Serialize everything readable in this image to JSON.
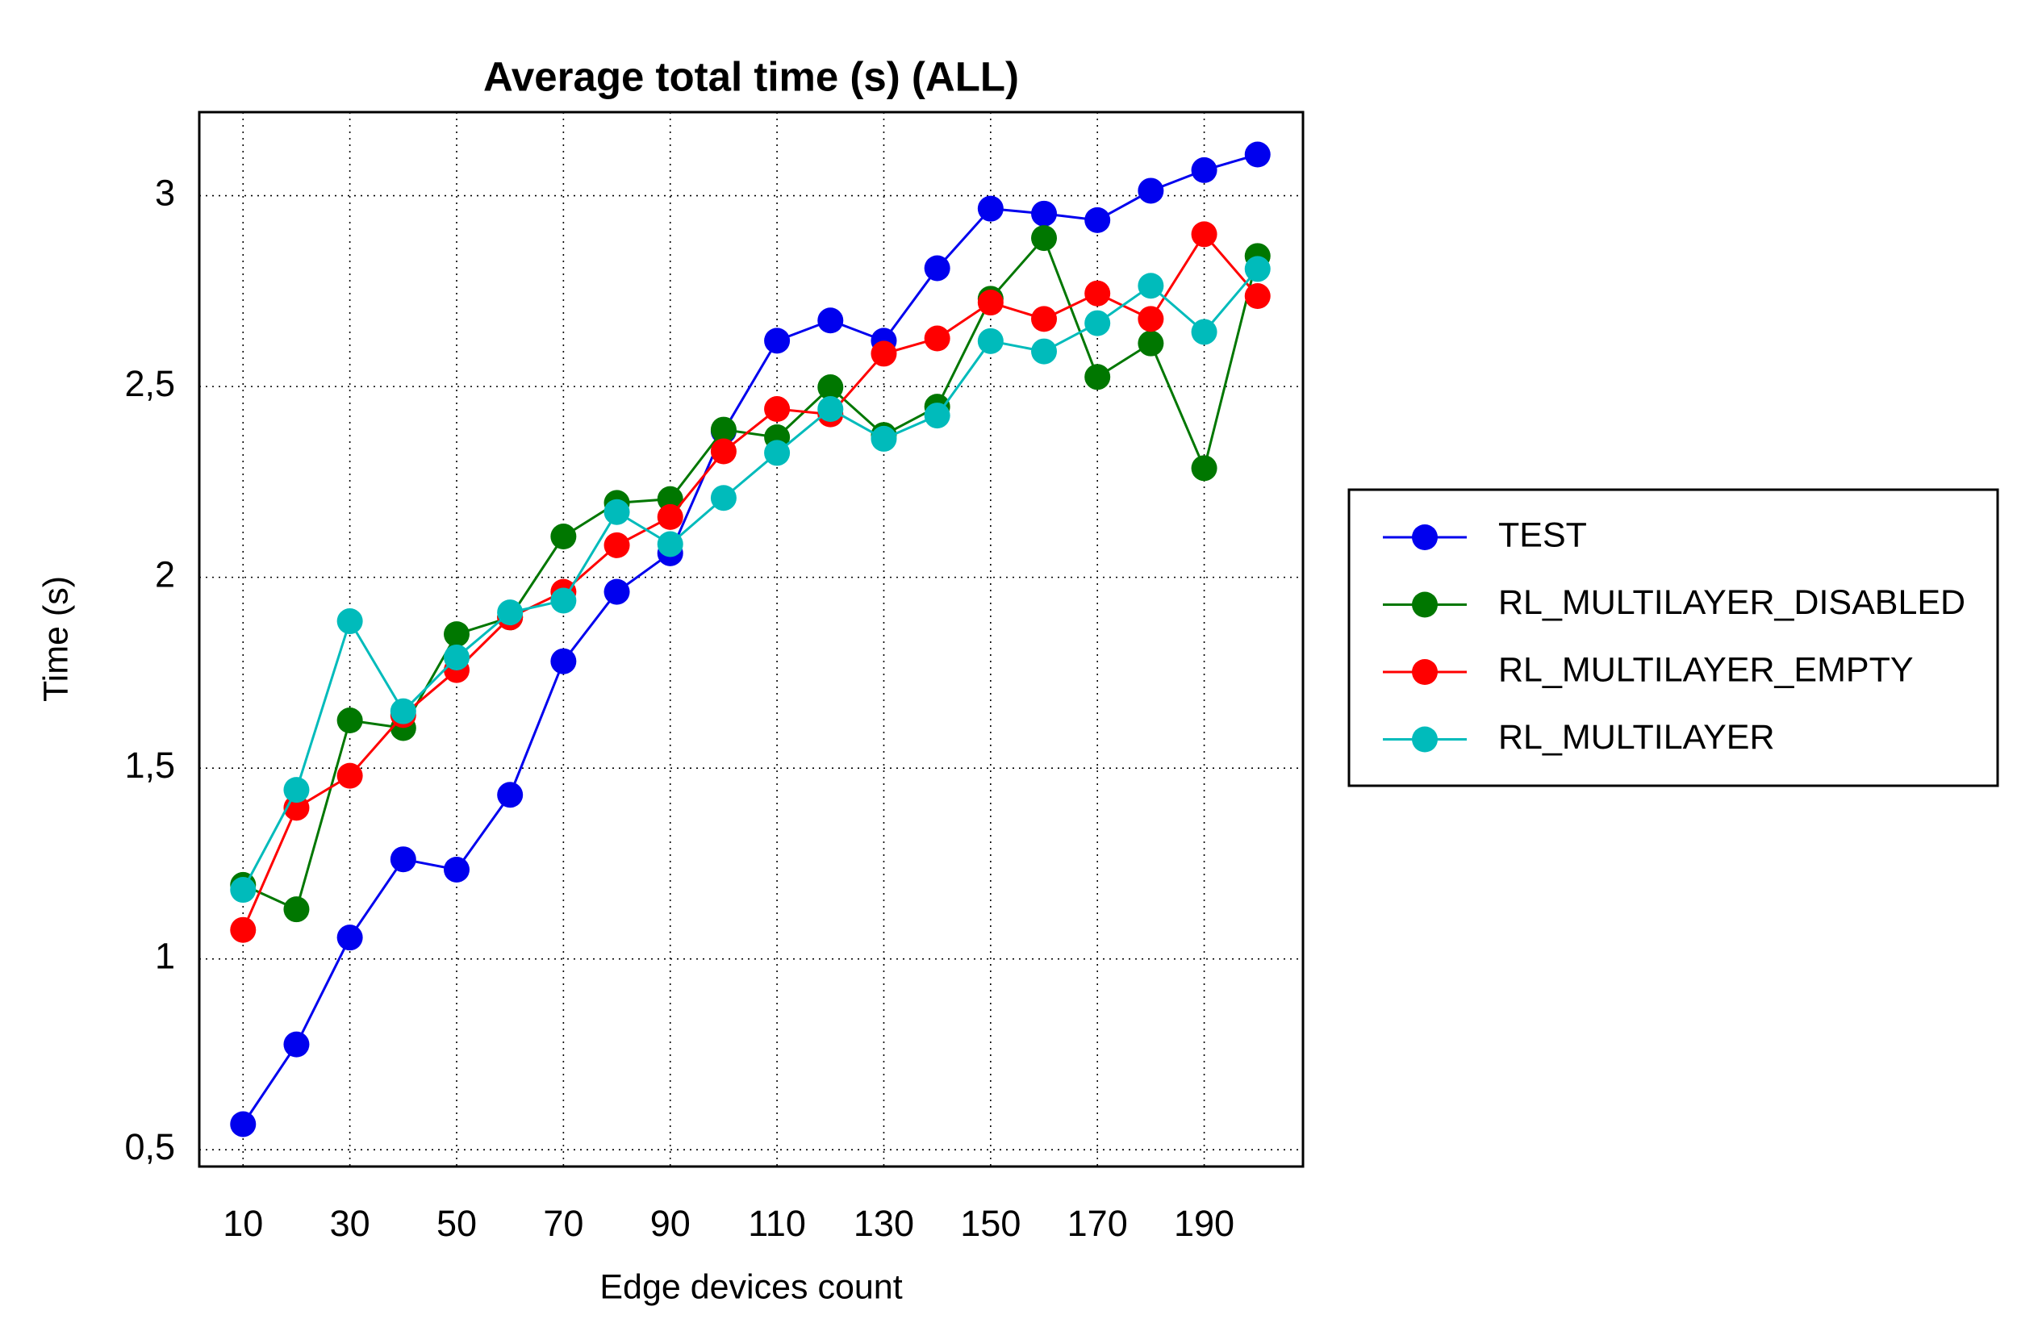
{
  "chart_data": {
    "type": "line",
    "title": "Average total time (s) (ALL)",
    "x_label": "Edge devices count",
    "y_label": "Time (s)",
    "x": [
      10,
      20,
      30,
      40,
      50,
      60,
      70,
      80,
      90,
      100,
      110,
      120,
      130,
      140,
      150,
      160,
      170,
      180,
      190,
      200
    ],
    "xlim": [
      1.8,
      208.5
    ],
    "ylim": [
      0.456,
      3.219
    ],
    "xticks": [
      10,
      30,
      50,
      70,
      90,
      110,
      130,
      150,
      170,
      190
    ],
    "yticks": [
      {
        "value": 0.5,
        "label": "0,5"
      },
      1,
      {
        "value": 1.5,
        "label": "1,5"
      },
      2,
      {
        "value": 2.5,
        "label": "2,5"
      },
      3
    ],
    "grid": true,
    "legend": "right",
    "series": [
      {
        "name": "TEST",
        "color": "#0000ee",
        "values": [
          0.567,
          0.776,
          1.056,
          1.261,
          1.234,
          1.43,
          1.78,
          1.962,
          2.063,
          2.383,
          2.62,
          2.673,
          2.62,
          2.81,
          2.966,
          2.953,
          2.936,
          3.013,
          3.067,
          3.108
        ]
      },
      {
        "name": "RL_MULTILAYER_DISABLED",
        "color": "#007700",
        "values": [
          1.194,
          1.13,
          1.625,
          1.605,
          1.851,
          1.895,
          2.107,
          2.195,
          2.205,
          2.387,
          2.367,
          2.498,
          2.373,
          2.447,
          2.73,
          2.889,
          2.525,
          2.613,
          2.286,
          2.842
        ]
      },
      {
        "name": "RL_MULTILAYER_EMPTY",
        "color": "#ff0000",
        "values": [
          1.076,
          1.396,
          1.48,
          1.639,
          1.757,
          1.895,
          1.962,
          2.084,
          2.158,
          2.33,
          2.441,
          2.427,
          2.586,
          2.626,
          2.72,
          2.677,
          2.744,
          2.677,
          2.899,
          2.737
        ]
      },
      {
        "name": "RL_MULTILAYER",
        "color": "#00bbbb",
        "values": [
          1.181,
          1.443,
          1.885,
          1.649,
          1.79,
          1.908,
          1.939,
          2.171,
          2.087,
          2.208,
          2.326,
          2.441,
          2.363,
          2.424,
          2.619,
          2.592,
          2.666,
          2.764,
          2.643,
          2.808
        ]
      }
    ]
  }
}
